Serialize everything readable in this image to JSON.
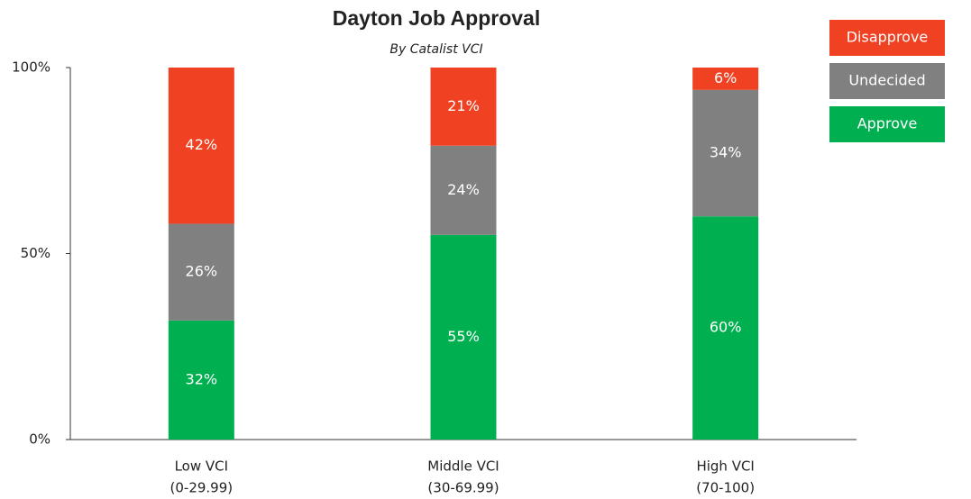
{
  "chart_data": {
    "type": "stacked_bar",
    "title": "Dayton Job Approval",
    "subtitle": "By Catalist VCI",
    "categories": [
      [
        "Low VCI",
        "(0-29.99)"
      ],
      [
        "Middle VCI",
        "(30-69.99)"
      ],
      [
        "High VCI",
        "(70-100)"
      ]
    ],
    "series": [
      {
        "name": "Approve",
        "color": "#00b050",
        "values": [
          32,
          55,
          60
        ],
        "value_labels": [
          "32%",
          "55%",
          "60%"
        ]
      },
      {
        "name": "Undecided",
        "color": "#808080",
        "values": [
          26,
          24,
          34
        ],
        "value_labels": [
          "26%",
          "24%",
          "34%"
        ]
      },
      {
        "name": "Disapprove",
        "color": "#f04123",
        "values": [
          42,
          21,
          6
        ],
        "value_labels": [
          "42%",
          "21%",
          "6%"
        ]
      }
    ],
    "ylim": [
      0,
      100
    ],
    "yticks": [
      {
        "value": 0,
        "label": "0%"
      },
      {
        "value": 50,
        "label": "50%"
      },
      {
        "value": 100,
        "label": "100%"
      }
    ],
    "grid": false,
    "legend": "top-right"
  }
}
